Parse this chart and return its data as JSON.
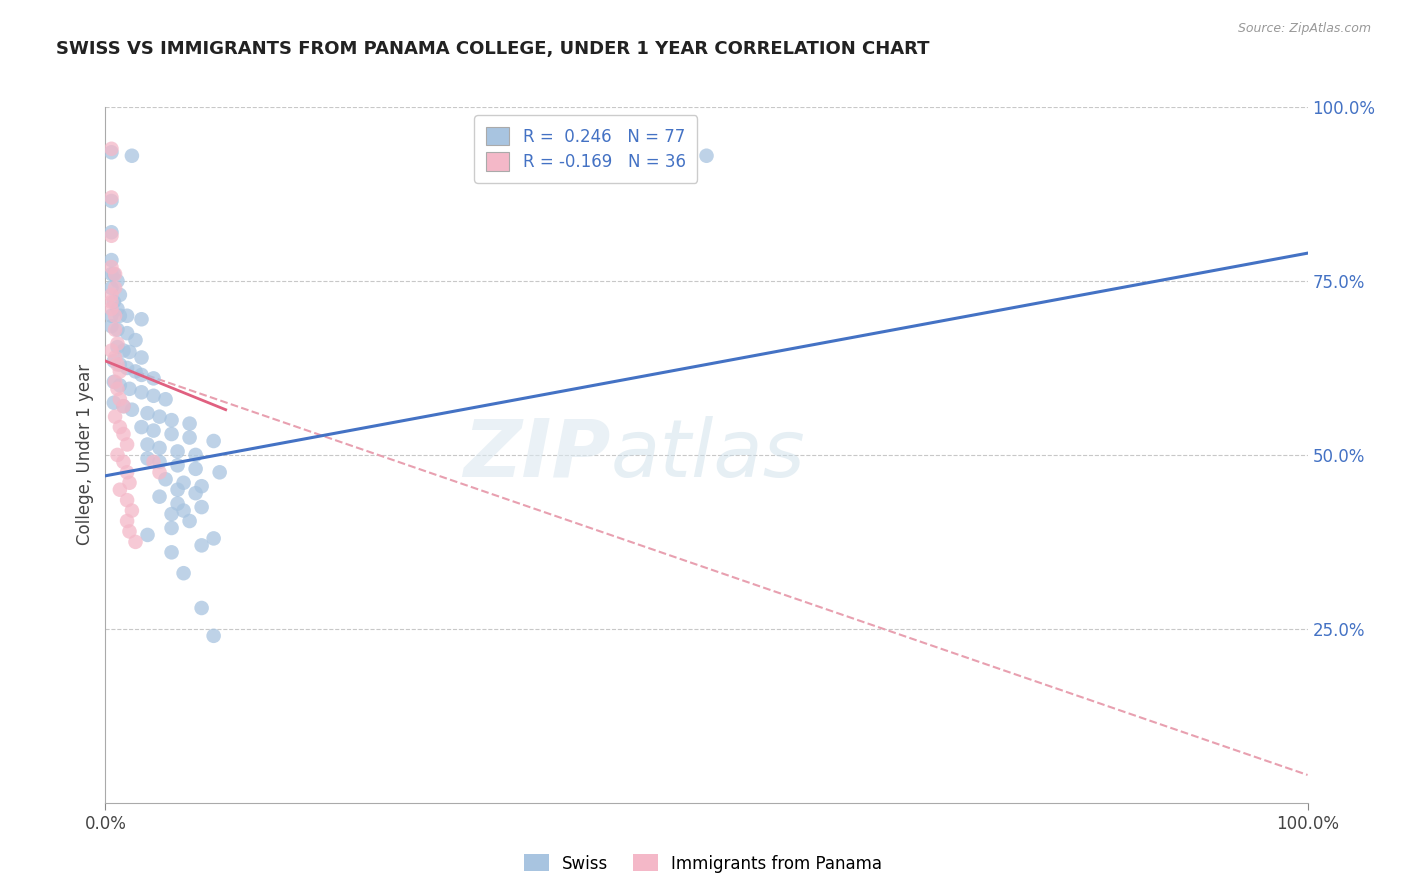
{
  "title": "SWISS VS IMMIGRANTS FROM PANAMA COLLEGE, UNDER 1 YEAR CORRELATION CHART",
  "source_text": "Source: ZipAtlas.com",
  "ylabel": "College, Under 1 year",
  "legend_entries": [
    {
      "label": "R =  0.246   N = 77",
      "color": "#a8c4e0"
    },
    {
      "label": "R = -0.169   N = 36",
      "color": "#f4b8c8"
    }
  ],
  "bottom_legend": [
    "Swiss",
    "Immigrants from Panama"
  ],
  "xlim": [
    0.0,
    1.0
  ],
  "ylim": [
    0.0,
    1.0
  ],
  "ytick_positions": [
    1.0,
    0.75,
    0.5,
    0.25
  ],
  "ytick_labels": [
    "100.0%",
    "75.0%",
    "50.0%",
    "25.0%"
  ],
  "grid_color": "#c8c8c8",
  "swiss_color": "#a8c4e0",
  "panama_color": "#f4b8c8",
  "swiss_line_color": "#4472c4",
  "panama_line_solid_color": "#e06080",
  "panama_line_dash_color": "#e8a0b0",
  "swiss_line": [
    0.0,
    0.47,
    1.0,
    0.79
  ],
  "panama_line_solid": [
    0.0,
    0.635,
    0.1,
    0.565
  ],
  "panama_line_dashed": [
    0.0,
    0.635,
    1.0,
    0.04
  ],
  "swiss_points": [
    [
      0.005,
      0.935
    ],
    [
      0.022,
      0.93
    ],
    [
      0.5,
      0.93
    ],
    [
      0.005,
      0.865
    ],
    [
      0.005,
      0.82
    ],
    [
      0.005,
      0.78
    ],
    [
      0.005,
      0.76
    ],
    [
      0.007,
      0.76
    ],
    [
      0.01,
      0.75
    ],
    [
      0.005,
      0.74
    ],
    [
      0.012,
      0.73
    ],
    [
      0.007,
      0.72
    ],
    [
      0.01,
      0.71
    ],
    [
      0.005,
      0.7
    ],
    [
      0.012,
      0.7
    ],
    [
      0.018,
      0.7
    ],
    [
      0.03,
      0.695
    ],
    [
      0.005,
      0.685
    ],
    [
      0.01,
      0.68
    ],
    [
      0.018,
      0.675
    ],
    [
      0.025,
      0.665
    ],
    [
      0.01,
      0.655
    ],
    [
      0.015,
      0.65
    ],
    [
      0.02,
      0.648
    ],
    [
      0.03,
      0.64
    ],
    [
      0.007,
      0.635
    ],
    [
      0.012,
      0.63
    ],
    [
      0.018,
      0.625
    ],
    [
      0.025,
      0.62
    ],
    [
      0.03,
      0.615
    ],
    [
      0.04,
      0.61
    ],
    [
      0.007,
      0.605
    ],
    [
      0.012,
      0.6
    ],
    [
      0.02,
      0.595
    ],
    [
      0.03,
      0.59
    ],
    [
      0.04,
      0.585
    ],
    [
      0.05,
      0.58
    ],
    [
      0.007,
      0.575
    ],
    [
      0.015,
      0.57
    ],
    [
      0.022,
      0.565
    ],
    [
      0.035,
      0.56
    ],
    [
      0.045,
      0.555
    ],
    [
      0.055,
      0.55
    ],
    [
      0.07,
      0.545
    ],
    [
      0.03,
      0.54
    ],
    [
      0.04,
      0.535
    ],
    [
      0.055,
      0.53
    ],
    [
      0.07,
      0.525
    ],
    [
      0.09,
      0.52
    ],
    [
      0.035,
      0.515
    ],
    [
      0.045,
      0.51
    ],
    [
      0.06,
      0.505
    ],
    [
      0.075,
      0.5
    ],
    [
      0.035,
      0.495
    ],
    [
      0.045,
      0.49
    ],
    [
      0.06,
      0.485
    ],
    [
      0.075,
      0.48
    ],
    [
      0.095,
      0.475
    ],
    [
      0.05,
      0.465
    ],
    [
      0.065,
      0.46
    ],
    [
      0.08,
      0.455
    ],
    [
      0.06,
      0.45
    ],
    [
      0.075,
      0.445
    ],
    [
      0.045,
      0.44
    ],
    [
      0.06,
      0.43
    ],
    [
      0.08,
      0.425
    ],
    [
      0.065,
      0.42
    ],
    [
      0.055,
      0.415
    ],
    [
      0.07,
      0.405
    ],
    [
      0.055,
      0.395
    ],
    [
      0.035,
      0.385
    ],
    [
      0.09,
      0.38
    ],
    [
      0.08,
      0.37
    ],
    [
      0.055,
      0.36
    ],
    [
      0.065,
      0.33
    ],
    [
      0.08,
      0.28
    ],
    [
      0.09,
      0.24
    ]
  ],
  "panama_points": [
    [
      0.005,
      0.94
    ],
    [
      0.005,
      0.87
    ],
    [
      0.005,
      0.815
    ],
    [
      0.005,
      0.77
    ],
    [
      0.008,
      0.76
    ],
    [
      0.008,
      0.74
    ],
    [
      0.005,
      0.73
    ],
    [
      0.005,
      0.72
    ],
    [
      0.005,
      0.71
    ],
    [
      0.008,
      0.7
    ],
    [
      0.008,
      0.68
    ],
    [
      0.01,
      0.66
    ],
    [
      0.005,
      0.65
    ],
    [
      0.008,
      0.64
    ],
    [
      0.01,
      0.63
    ],
    [
      0.012,
      0.62
    ],
    [
      0.008,
      0.605
    ],
    [
      0.01,
      0.595
    ],
    [
      0.012,
      0.58
    ],
    [
      0.015,
      0.57
    ],
    [
      0.008,
      0.555
    ],
    [
      0.012,
      0.54
    ],
    [
      0.015,
      0.53
    ],
    [
      0.018,
      0.515
    ],
    [
      0.01,
      0.5
    ],
    [
      0.015,
      0.49
    ],
    [
      0.018,
      0.475
    ],
    [
      0.02,
      0.46
    ],
    [
      0.012,
      0.45
    ],
    [
      0.018,
      0.435
    ],
    [
      0.022,
      0.42
    ],
    [
      0.018,
      0.405
    ],
    [
      0.02,
      0.39
    ],
    [
      0.025,
      0.375
    ],
    [
      0.04,
      0.49
    ],
    [
      0.045,
      0.475
    ]
  ]
}
